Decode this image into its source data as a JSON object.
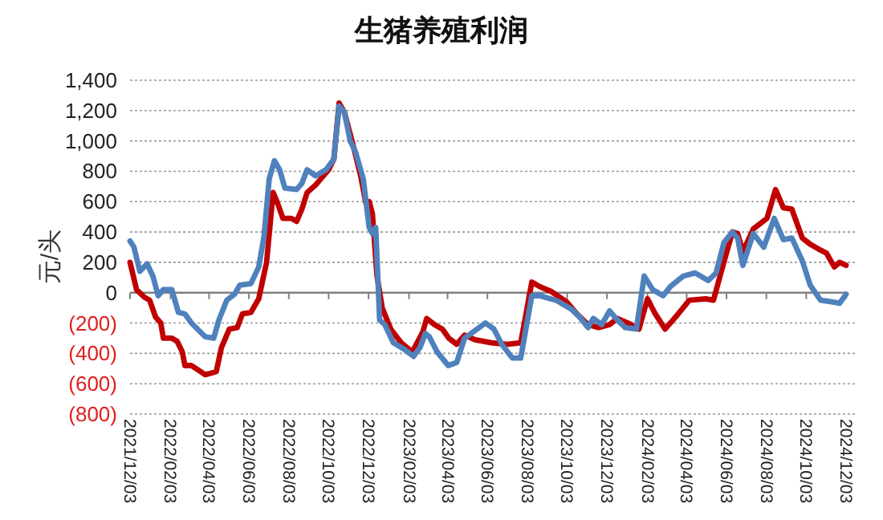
{
  "chart_data": {
    "type": "line",
    "title": "生猪养殖利润",
    "ylabel": "元/头",
    "xlim": [
      "2021-12-03",
      "2024-12-03"
    ],
    "xticks": [
      {
        "value": "2021-12-03",
        "label": "2021/12/03"
      },
      {
        "value": "2022-02-03",
        "label": "2022/02/03"
      },
      {
        "value": "2022-04-03",
        "label": "2022/04/03"
      },
      {
        "value": "2022-06-03",
        "label": "2022/06/03"
      },
      {
        "value": "2022-08-03",
        "label": "2022/08/03"
      },
      {
        "value": "2022-10-03",
        "label": "2022/10/03"
      },
      {
        "value": "2022-12-03",
        "label": "2022/12/03"
      },
      {
        "value": "2023-02-03",
        "label": "2023/02/03"
      },
      {
        "value": "2023-04-03",
        "label": "2023/04/03"
      },
      {
        "value": "2023-06-03",
        "label": "2023/06/03"
      },
      {
        "value": "2023-08-03",
        "label": "2023/08/03"
      },
      {
        "value": "2023-10-03",
        "label": "2023/10/03"
      },
      {
        "value": "2023-12-03",
        "label": "2023/12/03"
      },
      {
        "value": "2024-02-03",
        "label": "2024/02/03"
      },
      {
        "value": "2024-04-03",
        "label": "2024/04/03"
      },
      {
        "value": "2024-06-03",
        "label": "2024/06/03"
      },
      {
        "value": "2024-08-03",
        "label": "2024/08/03"
      },
      {
        "value": "2024-10-03",
        "label": "2024/10/03"
      },
      {
        "value": "2024-12-03",
        "label": "2024/12/03"
      }
    ],
    "ylim": [
      -800,
      1400
    ],
    "yticks": [
      {
        "value": -800,
        "label": "(800)"
      },
      {
        "value": -600,
        "label": "(600)"
      },
      {
        "value": -400,
        "label": "(400)"
      },
      {
        "value": -200,
        "label": "(200)"
      },
      0,
      {
        "value": 200,
        "label": "200"
      },
      {
        "value": 400,
        "label": "400"
      },
      {
        "value": 600,
        "label": "600"
      },
      {
        "value": 800,
        "label": "800"
      },
      {
        "value": 1000,
        "label": "1,000"
      },
      {
        "value": 1200,
        "label": "1,200"
      },
      {
        "value": 1400,
        "label": "1,400"
      }
    ],
    "grid": "y",
    "marker": "none",
    "line_style": "solid",
    "series": [
      {
        "color": "#c00000",
        "x": [
          "2021-12-03",
          "2021-12-13",
          "2021-12-25",
          "2022-01-02",
          "2022-01-11",
          "2022-01-19",
          "2022-01-23",
          "2022-02-05",
          "2022-02-13",
          "2022-02-21",
          "2022-02-25",
          "2022-03-07",
          "2022-03-28",
          "2022-04-06",
          "2022-04-14",
          "2022-04-22",
          "2022-05-04",
          "2022-05-16",
          "2022-05-24",
          "2022-06-06",
          "2022-06-18",
          "2022-06-30",
          "2022-07-10",
          "2022-07-16",
          "2022-07-25",
          "2022-08-07",
          "2022-08-15",
          "2022-08-23",
          "2022-08-31",
          "2022-09-13",
          "2022-09-21",
          "2022-10-03",
          "2022-10-11",
          "2022-10-19",
          "2022-10-27",
          "2022-11-09",
          "2022-11-21",
          "2022-11-29",
          "2022-12-04",
          "2022-12-09",
          "2022-12-16",
          "2022-12-24",
          "2023-01-06",
          "2023-01-22",
          "2023-02-08",
          "2023-02-24",
          "2023-03-02",
          "2023-03-14",
          "2023-03-26",
          "2023-04-05",
          "2023-04-17",
          "2023-04-29",
          "2023-05-15",
          "2023-06-09",
          "2023-07-03",
          "2023-07-24",
          "2023-08-10",
          "2023-08-22",
          "2023-09-08",
          "2023-10-02",
          "2023-10-18",
          "2023-11-04",
          "2023-11-20",
          "2023-12-07",
          "2023-12-19",
          "2024-01-09",
          "2024-01-21",
          "2024-02-03",
          "2024-02-15",
          "2024-03-01",
          "2024-03-21",
          "2024-04-07",
          "2024-05-02",
          "2024-05-14",
          "2024-05-26",
          "2024-06-12",
          "2024-06-20",
          "2024-06-28",
          "2024-07-14",
          "2024-08-04",
          "2024-08-17",
          "2024-08-29",
          "2024-09-11",
          "2024-09-27",
          "2024-10-09",
          "2024-10-21",
          "2024-11-03",
          "2024-11-15",
          "2024-11-23",
          "2024-12-03"
        ],
        "values": [
          200,
          20,
          -30,
          -50,
          -160,
          -200,
          -300,
          -300,
          -320,
          -390,
          -480,
          -480,
          -540,
          -530,
          -520,
          -360,
          -240,
          -230,
          -140,
          -130,
          -40,
          200,
          660,
          600,
          490,
          490,
          470,
          550,
          660,
          710,
          750,
          810,
          880,
          1250,
          1190,
          980,
          770,
          590,
          600,
          520,
          110,
          -100,
          -240,
          -330,
          -390,
          -260,
          -170,
          -210,
          -240,
          -300,
          -340,
          -280,
          -310,
          -330,
          -340,
          -330,
          70,
          40,
          10,
          -60,
          -140,
          -210,
          -230,
          -210,
          -170,
          -210,
          -240,
          -40,
          -140,
          -240,
          -140,
          -50,
          -40,
          -50,
          140,
          400,
          390,
          270,
          420,
          490,
          680,
          560,
          550,
          360,
          320,
          290,
          260,
          170,
          200,
          180
        ]
      },
      {
        "color": "#4f81bd",
        "x": [
          "2021-12-03",
          "2021-12-09",
          "2021-12-18",
          "2021-12-29",
          "2022-01-07",
          "2022-01-15",
          "2022-01-23",
          "2022-02-05",
          "2022-02-15",
          "2022-02-25",
          "2022-03-07",
          "2022-03-28",
          "2022-04-10",
          "2022-04-18",
          "2022-04-30",
          "2022-05-12",
          "2022-05-20",
          "2022-06-06",
          "2022-06-18",
          "2022-06-26",
          "2022-07-04",
          "2022-07-12",
          "2022-07-20",
          "2022-07-28",
          "2022-08-15",
          "2022-08-23",
          "2022-08-31",
          "2022-09-13",
          "2022-09-29",
          "2022-10-11",
          "2022-10-19",
          "2022-10-27",
          "2022-11-05",
          "2022-11-13",
          "2022-11-25",
          "2022-12-04",
          "2022-12-09",
          "2022-12-14",
          "2022-12-20",
          "2022-12-28",
          "2023-01-10",
          "2023-01-26",
          "2023-02-10",
          "2023-02-20",
          "2023-02-28",
          "2023-03-06",
          "2023-03-18",
          "2023-04-04",
          "2023-04-17",
          "2023-04-29",
          "2023-05-15",
          "2023-05-31",
          "2023-06-13",
          "2023-06-25",
          "2023-07-11",
          "2023-07-24",
          "2023-08-10",
          "2023-08-22",
          "2023-09-16",
          "2023-10-10",
          "2023-10-22",
          "2023-11-04",
          "2023-11-12",
          "2023-11-25",
          "2023-12-07",
          "2023-12-19",
          "2023-12-31",
          "2024-01-17",
          "2024-01-29",
          "2024-02-11",
          "2024-02-27",
          "2024-03-09",
          "2024-03-29",
          "2024-04-16",
          "2024-05-06",
          "2024-05-18",
          "2024-05-30",
          "2024-06-12",
          "2024-06-20",
          "2024-06-28",
          "2024-07-14",
          "2024-07-30",
          "2024-08-15",
          "2024-08-29",
          "2024-09-11",
          "2024-09-27",
          "2024-10-09",
          "2024-10-25",
          "2024-11-11",
          "2024-11-23",
          "2024-12-03"
        ],
        "values": [
          340,
          300,
          140,
          190,
          110,
          -20,
          20,
          20,
          -130,
          -140,
          -200,
          -290,
          -300,
          -180,
          -50,
          -10,
          50,
          60,
          170,
          370,
          750,
          870,
          810,
          690,
          680,
          720,
          810,
          770,
          810,
          880,
          1230,
          1190,
          1000,
          930,
          750,
          430,
          390,
          430,
          -180,
          -210,
          -330,
          -370,
          -420,
          -360,
          -270,
          -290,
          -390,
          -480,
          -460,
          -300,
          -250,
          -200,
          -240,
          -340,
          -430,
          -430,
          -20,
          -20,
          -50,
          -110,
          -160,
          -230,
          -170,
          -210,
          -120,
          -180,
          -230,
          -240,
          110,
          20,
          -20,
          40,
          110,
          130,
          80,
          130,
          330,
          400,
          360,
          180,
          390,
          300,
          490,
          350,
          360,
          210,
          50,
          -50,
          -60,
          -70,
          -10
        ]
      }
    ]
  }
}
